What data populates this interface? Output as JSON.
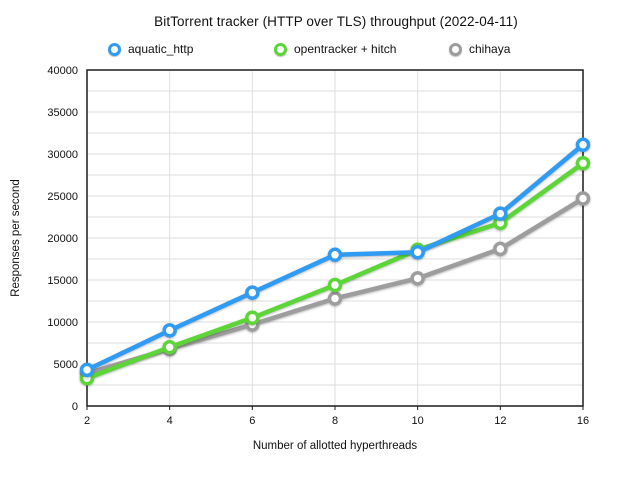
{
  "chart_data": {
    "type": "line",
    "title": "BitTorrent tracker (HTTP over TLS) throughput (2022-04-11)",
    "xlabel": "Number of allotted hyperthreads",
    "ylabel": "Responses per second",
    "categories": [
      2,
      4,
      6,
      8,
      10,
      12,
      16
    ],
    "x_tick_labels": [
      "2",
      "4",
      "6",
      "8",
      "10",
      "12",
      "16"
    ],
    "y_tick_labels": [
      "0",
      "5000",
      "10000",
      "15000",
      "20000",
      "25000",
      "30000",
      "35000",
      "40000"
    ],
    "ylim": [
      0,
      40000
    ],
    "y_label_step": 5000,
    "y_grid_step": 2500,
    "grid": true,
    "legend_position": "top",
    "series": [
      {
        "name": "aquatic_http",
        "color": "#2F9BF3",
        "values": [
          4300,
          9000,
          13500,
          18000,
          18300,
          22900,
          31100
        ]
      },
      {
        "name": "opentracker + hitch",
        "color": "#5CD637",
        "values": [
          3300,
          7000,
          10500,
          14400,
          18600,
          21800,
          28900
        ]
      },
      {
        "name": "chihaya",
        "color": "#9D9D9D",
        "values": [
          3900,
          6800,
          9700,
          12800,
          15200,
          18700,
          24700
        ]
      }
    ],
    "frame_color": "#1c1c1c",
    "grid_color": "#dedede",
    "tick_text_color": "#111111"
  }
}
